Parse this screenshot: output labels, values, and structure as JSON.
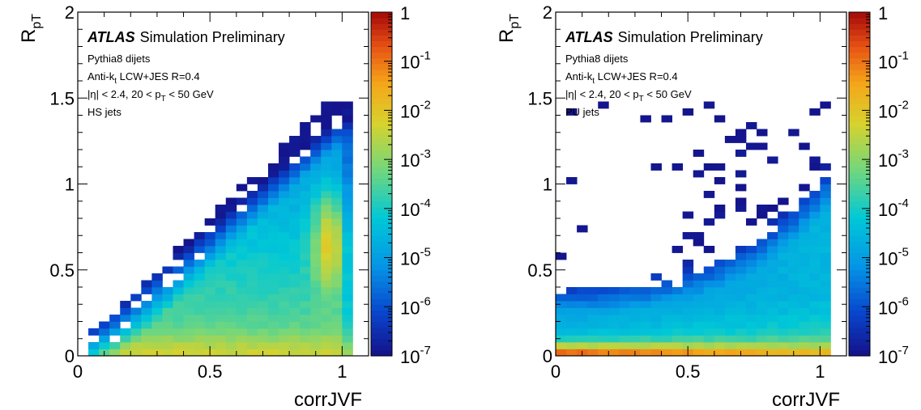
{
  "chart_data": [
    {
      "type": "heatmap",
      "xlabel": "corrJVF",
      "ylabel_main": "R",
      "ylabel_sub": "pT",
      "xlim": [
        0,
        1.1
      ],
      "ylim": [
        0,
        2
      ],
      "x_ticks": [
        "0",
        "0.5",
        "1"
      ],
      "y_ticks": [
        "0",
        "0.5",
        "1",
        "1.5",
        "2"
      ],
      "z_scale": "log",
      "z_range": [
        1e-07,
        1
      ],
      "colorbar_ticks": [
        {
          "base": "1",
          "exp": ""
        },
        {
          "base": "10",
          "exp": "-1"
        },
        {
          "base": "10",
          "exp": "-2"
        },
        {
          "base": "10",
          "exp": "-3"
        },
        {
          "base": "10",
          "exp": "-4"
        },
        {
          "base": "10",
          "exp": "-5"
        },
        {
          "base": "10",
          "exp": "-6"
        },
        {
          "base": "10",
          "exp": "-7"
        }
      ],
      "annotation": {
        "atlas": "ATLAS",
        "simulation": "Simulation Preliminary",
        "line1": "Pythia8 dijets",
        "line2_pre": "Anti-k",
        "line2_sub": "t",
        "line2_post": " LCW+JES R=0.4",
        "line3_pre": "|η| < 2.4, 20 < p",
        "line3_sub": "T",
        "line3_post": " < 50 GeV",
        "line4": "HS jets"
      },
      "sample": "HS",
      "grid": false
    },
    {
      "type": "heatmap",
      "xlabel": "corrJVF",
      "ylabel_main": "R",
      "ylabel_sub": "pT",
      "xlim": [
        0,
        1.1
      ],
      "ylim": [
        0,
        2
      ],
      "x_ticks": [
        "0",
        "0.5",
        "1"
      ],
      "y_ticks": [
        "0",
        "0.5",
        "1",
        "1.5",
        "2"
      ],
      "z_scale": "log",
      "z_range": [
        1e-07,
        1
      ],
      "colorbar_ticks": [
        {
          "base": "1",
          "exp": ""
        },
        {
          "base": "10",
          "exp": "-1"
        },
        {
          "base": "10",
          "exp": "-2"
        },
        {
          "base": "10",
          "exp": "-3"
        },
        {
          "base": "10",
          "exp": "-4"
        },
        {
          "base": "10",
          "exp": "-5"
        },
        {
          "base": "10",
          "exp": "-6"
        },
        {
          "base": "10",
          "exp": "-7"
        }
      ],
      "annotation": {
        "atlas": "ATLAS",
        "simulation": "Simulation Preliminary",
        "line1": "Pythia8 dijets",
        "line2_pre": "Anti-k",
        "line2_sub": "t",
        "line2_post": " LCW+JES R=0.4",
        "line3_pre": "|η| < 2.4, 20 < p",
        "line3_sub": "T",
        "line3_post": " < 50 GeV",
        "line4": "PU jets"
      },
      "sample": "PU",
      "grid": false
    }
  ]
}
